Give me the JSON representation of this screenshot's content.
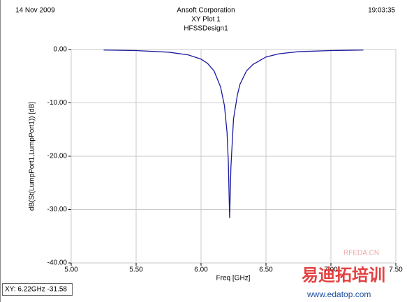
{
  "header": {
    "date": "14 Nov 2009",
    "company": "Ansoft Corporation",
    "time": "19:03:35"
  },
  "chart_data": {
    "type": "line",
    "title": "XY Plot 1",
    "subtitle": "HFSSDesign1",
    "x_label": "Freq [GHz]",
    "y_label": "dB(St(LumpPort1,LumpPort1)) [dB]",
    "x": [
      5.25,
      5.5,
      5.75,
      5.9,
      6.0,
      6.05,
      6.1,
      6.15,
      6.18,
      6.2,
      6.21,
      6.22,
      6.23,
      6.25,
      6.28,
      6.3,
      6.35,
      6.4,
      6.5,
      6.6,
      6.75,
      7.0,
      7.25
    ],
    "series": [
      {
        "name": "dB(St(LumpPort1,LumpPort1))",
        "color": "#1a1aa0",
        "values": [
          -0.1,
          -0.2,
          -0.5,
          -1.0,
          -1.8,
          -2.6,
          -4.0,
          -7.0,
          -10.5,
          -15.5,
          -21,
          -31.58,
          -22,
          -13,
          -8.5,
          -6.5,
          -4.0,
          -2.8,
          -1.4,
          -0.8,
          -0.4,
          -0.2,
          -0.1
        ]
      }
    ],
    "xlim": [
      5.0,
      7.5
    ],
    "xticks": [
      {
        "value": 5.0,
        "label": "5.00"
      },
      {
        "value": 5.5,
        "label": "5.50"
      },
      {
        "value": 6.0,
        "label": "6.00"
      },
      {
        "value": 6.5,
        "label": "6.50"
      },
      {
        "value": 7.0,
        "label": "7.00"
      },
      {
        "value": 7.5,
        "label": "7.50"
      }
    ],
    "ylim": [
      -40,
      0
    ],
    "yticks": [
      {
        "value": 0,
        "label": "0.00"
      },
      {
        "value": -10,
        "label": "-10.00"
      },
      {
        "value": -20,
        "label": "-20.00"
      },
      {
        "value": -30,
        "label": "-30.00"
      },
      {
        "value": -40,
        "label": "-40.00"
      }
    ],
    "grid": true
  },
  "status": "XY: 6.22GHz -31.58",
  "watermark": {
    "site": "RFEDA.CN",
    "brand": "易迪拓培训",
    "url": "www.edatop.com"
  }
}
